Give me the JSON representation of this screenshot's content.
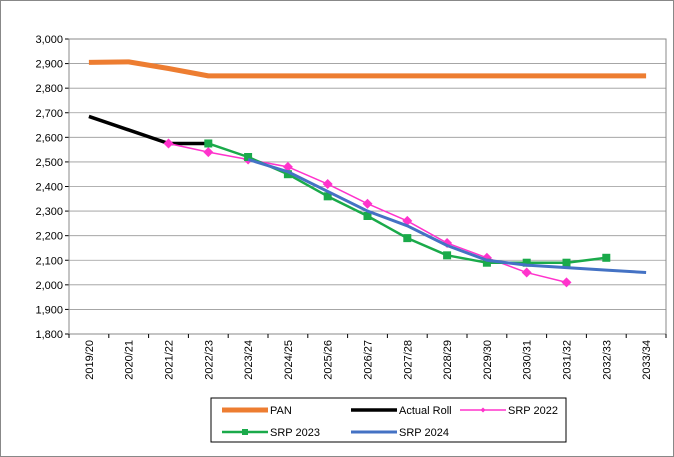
{
  "chart_data": {
    "type": "line",
    "categories": [
      "2019/20",
      "2020/21",
      "2021/22",
      "2022/23",
      "2023/24",
      "2024/25",
      "2025/26",
      "2026/27",
      "2027/28",
      "2028/29",
      "2029/30",
      "2030/31",
      "2031/32",
      "2032/33",
      "2033/34"
    ],
    "series": [
      {
        "name": "PAN",
        "color": "#ED7D31",
        "values": [
          2905,
          2907,
          2880,
          2850,
          2850,
          2850,
          2850,
          2850,
          2850,
          2850,
          2850,
          2850,
          2850,
          2850,
          2850
        ]
      },
      {
        "name": "Actual Roll",
        "color": "#000000",
        "values": [
          2685,
          2630,
          2575,
          2575,
          null,
          null,
          null,
          null,
          null,
          null,
          null,
          null,
          null,
          null,
          null
        ]
      },
      {
        "name": "SRP 2022",
        "color": "#FF33CC",
        "marker": "diamond",
        "values": [
          null,
          null,
          2575,
          2540,
          2510,
          2480,
          2410,
          2330,
          2260,
          2170,
          2110,
          2050,
          2010,
          null,
          null
        ]
      },
      {
        "name": "SRP 2023",
        "color": "#1AAA4A",
        "marker": "square",
        "values": [
          null,
          null,
          null,
          2575,
          2520,
          2450,
          2360,
          2280,
          2190,
          2120,
          2090,
          2090,
          2090,
          2110,
          null
        ]
      },
      {
        "name": "SRP 2024",
        "color": "#4472C4",
        "values": [
          null,
          null,
          null,
          null,
          2510,
          2460,
          2380,
          2300,
          2240,
          2160,
          2100,
          2080,
          2070,
          2060,
          2050
        ]
      }
    ],
    "ylim": [
      1800,
      3000
    ],
    "yticks": [
      {
        "value": 1800,
        "label": "1,800"
      },
      {
        "value": 1900,
        "label": "1,900"
      },
      {
        "value": 2000,
        "label": "2,000"
      },
      {
        "value": 2100,
        "label": "2,100"
      },
      {
        "value": 2200,
        "label": "2,200"
      },
      {
        "value": 2300,
        "label": "2,300"
      },
      {
        "value": 2400,
        "label": "2,400"
      },
      {
        "value": 2500,
        "label": "2,500"
      },
      {
        "value": 2600,
        "label": "2,600"
      },
      {
        "value": 2700,
        "label": "2,700"
      },
      {
        "value": 2800,
        "label": "2,800"
      },
      {
        "value": 2900,
        "label": "2,900"
      },
      {
        "value": 3000,
        "label": "3,000"
      }
    ],
    "grid": true,
    "legend": "bottom"
  }
}
